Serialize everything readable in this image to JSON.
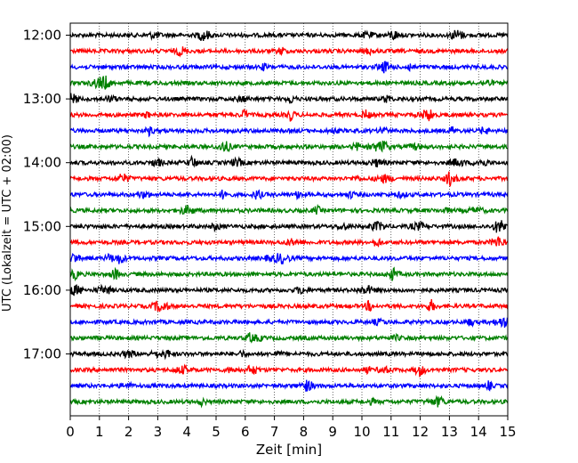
{
  "chart_data": {
    "type": "line",
    "title": "",
    "xlabel": "Zeit  [min]",
    "ylabel": "UTC (Lokalzeit = UTC + 02:00)",
    "xlim": [
      0,
      15
    ],
    "x_ticks": [
      "0",
      "1",
      "2",
      "3",
      "4",
      "5",
      "6",
      "7",
      "8",
      "9",
      "10",
      "11",
      "12",
      "13",
      "14",
      "15"
    ],
    "y_ticks": [
      "12:00",
      "13:00",
      "14:00",
      "15:00",
      "16:00",
      "17:00"
    ],
    "grid": "vertical dotted lines at each minute",
    "series_colors": [
      "#000000",
      "#ff0000",
      "#0000ff",
      "#008000"
    ],
    "traces": [
      {
        "start": "12:00",
        "color": "#000000"
      },
      {
        "start": "12:15",
        "color": "#ff0000"
      },
      {
        "start": "12:30",
        "color": "#0000ff"
      },
      {
        "start": "12:45",
        "color": "#008000"
      },
      {
        "start": "13:00",
        "color": "#000000"
      },
      {
        "start": "13:15",
        "color": "#ff0000"
      },
      {
        "start": "13:30",
        "color": "#0000ff"
      },
      {
        "start": "13:45",
        "color": "#008000"
      },
      {
        "start": "14:00",
        "color": "#000000"
      },
      {
        "start": "14:15",
        "color": "#ff0000"
      },
      {
        "start": "14:30",
        "color": "#0000ff"
      },
      {
        "start": "14:45",
        "color": "#008000"
      },
      {
        "start": "15:00",
        "color": "#000000"
      },
      {
        "start": "15:15",
        "color": "#ff0000"
      },
      {
        "start": "15:30",
        "color": "#0000ff"
      },
      {
        "start": "15:45",
        "color": "#008000"
      },
      {
        "start": "16:00",
        "color": "#000000"
      },
      {
        "start": "16:15",
        "color": "#ff0000"
      },
      {
        "start": "16:30",
        "color": "#0000ff"
      },
      {
        "start": "16:45",
        "color": "#008000"
      },
      {
        "start": "17:00",
        "color": "#000000"
      },
      {
        "start": "17:15",
        "color": "#ff0000"
      },
      {
        "start": "17:30",
        "color": "#0000ff"
      },
      {
        "start": "17:45",
        "color": "#008000"
      }
    ]
  }
}
